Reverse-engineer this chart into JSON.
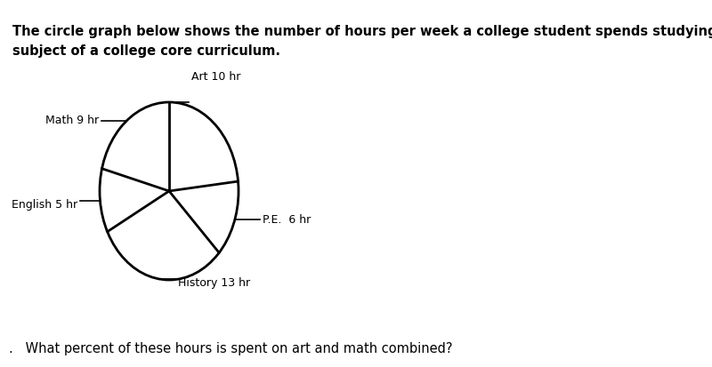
{
  "title_line1": "The circle graph below shows the number of hours per week a college student spends studying each",
  "title_line2": "subject of a college core curriculum.",
  "question": ".   What percent of these hours is spent on art and math combined?",
  "subjects": [
    "Art",
    "P.E.",
    "History",
    "English",
    "Math"
  ],
  "hours": [
    10,
    6,
    13,
    5,
    9
  ],
  "background_color": "#ffffff",
  "pie_edge_color": "#000000",
  "text_color": "#000000",
  "title_fontsize": 10.5,
  "label_fontsize": 9,
  "question_fontsize": 10.5
}
